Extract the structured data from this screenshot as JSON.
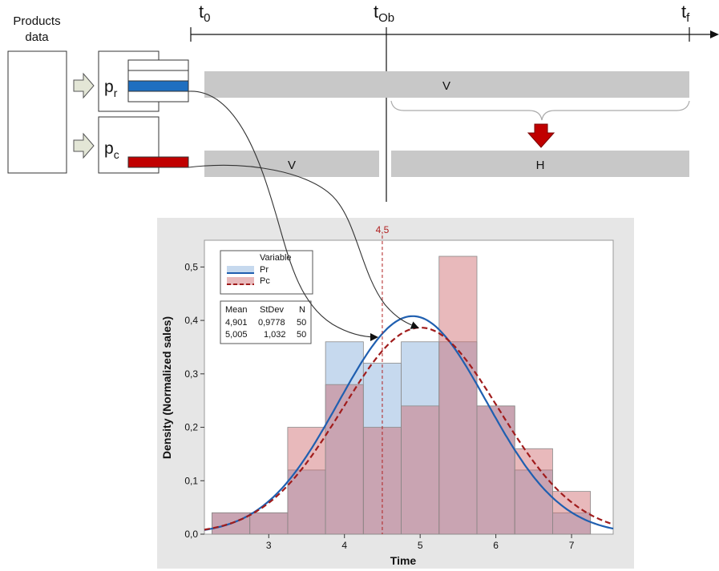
{
  "diagram": {
    "products_data": [
      "Products",
      "data"
    ],
    "pr_label": {
      "base": "p",
      "sub": "r"
    },
    "pc_label": {
      "base": "p",
      "sub": "c"
    },
    "timeline": {
      "t0": {
        "base": "t",
        "sub": "0"
      },
      "tob": {
        "base": "t",
        "sub": "Ob"
      },
      "tf": {
        "base": "t",
        "sub": "f"
      }
    },
    "bar_top_label": "V",
    "bar_bottom_left_label": "V",
    "bar_bottom_right_label": "H",
    "colors": {
      "bar": "#c8c8c8",
      "pr_blue": "#1f6fc0",
      "pc_red": "#c00000",
      "arrow_fill": "#e3e6d6"
    }
  },
  "chart_data": {
    "type": "bar",
    "subtype": "histogram-with-density-fit",
    "xlabel": "Time",
    "ylabel": "Density (Normalized sales)",
    "xlim": [
      2.15,
      7.55
    ],
    "ylim": [
      0,
      0.55
    ],
    "xticks": [
      3,
      4,
      5,
      6,
      7
    ],
    "yticks": [
      0.0,
      0.1,
      0.2,
      0.3,
      0.4,
      0.5
    ],
    "ytick_labels": [
      "0,0",
      "0,1",
      "0,2",
      "0,3",
      "0,4",
      "0,5"
    ],
    "bin_edges": [
      2.25,
      2.75,
      3.25,
      3.75,
      4.25,
      4.75,
      5.25,
      5.75,
      6.25,
      6.75,
      7.25
    ],
    "series": [
      {
        "name": "Pr",
        "color": "#1f5fb0",
        "fill": "#c6d9ee",
        "line_style": "solid",
        "values": [
          0.04,
          0.04,
          0.12,
          0.36,
          0.32,
          0.36,
          0.36,
          0.24,
          0.12,
          0.04
        ],
        "mean": 4.901,
        "stdev": 0.9778,
        "n": 50
      },
      {
        "name": "Pc",
        "color": "#a01c1c",
        "fill": "rgba(205,100,105,0.45)",
        "line_style": "dashed",
        "values": [
          0.04,
          0.04,
          0.2,
          0.28,
          0.2,
          0.24,
          0.52,
          0.24,
          0.16,
          0.08
        ],
        "mean": 5.005,
        "stdev": 1.032,
        "n": 50
      }
    ],
    "reference_line": {
      "x": 4.5,
      "label": "4,5",
      "color": "#b02020"
    },
    "legend": {
      "title": "Variable",
      "position": "top-left",
      "entries": [
        "Pr",
        "Pc"
      ],
      "stats_header": [
        "Mean",
        "StDev",
        "N"
      ],
      "stats_rows": [
        [
          "4,901",
          "0,9778",
          "50"
        ],
        [
          "5,005",
          "1,032",
          "50"
        ]
      ]
    },
    "background": "#e6e6e6",
    "plot_background": "#ffffff"
  }
}
